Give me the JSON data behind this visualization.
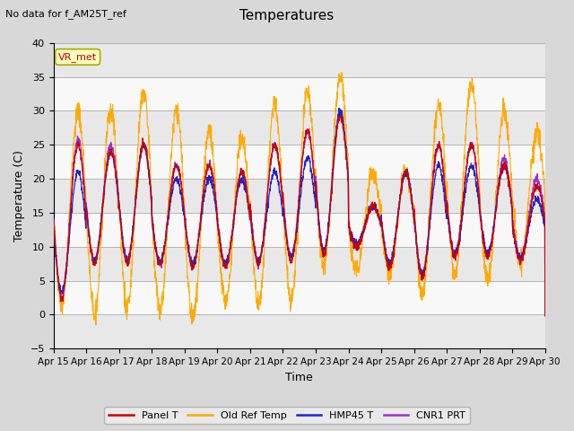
{
  "title": "Temperatures",
  "subtitle": "No data for f_AM25T_ref",
  "xlabel": "Time",
  "ylabel": "Temperature (C)",
  "ylim": [
    -5,
    40
  ],
  "yticks": [
    -5,
    0,
    5,
    10,
    15,
    20,
    25,
    30,
    35,
    40
  ],
  "x_labels": [
    "Apr 15",
    "Apr 16",
    "Apr 17",
    "Apr 18",
    "Apr 19",
    "Apr 20",
    "Apr 21",
    "Apr 22",
    "Apr 23",
    "Apr 24",
    "Apr 25",
    "Apr 26",
    "Apr 27",
    "Apr 28",
    "Apr 29",
    "Apr 30"
  ],
  "vr_met_label": "VR_met",
  "legend_entries": [
    "Panel T",
    "Old Ref Temp",
    "HMP45 T",
    "CNR1 PRT"
  ],
  "line_colors": [
    "#cc0000",
    "#ffaa00",
    "#2222cc",
    "#9933cc"
  ],
  "background_color": "#d8d8d8",
  "plot_background": "#ffffff",
  "n_days": 15,
  "pts_per_day": 144,
  "band_colors": [
    "#e8e8e8",
    "#f8f8f8"
  ]
}
